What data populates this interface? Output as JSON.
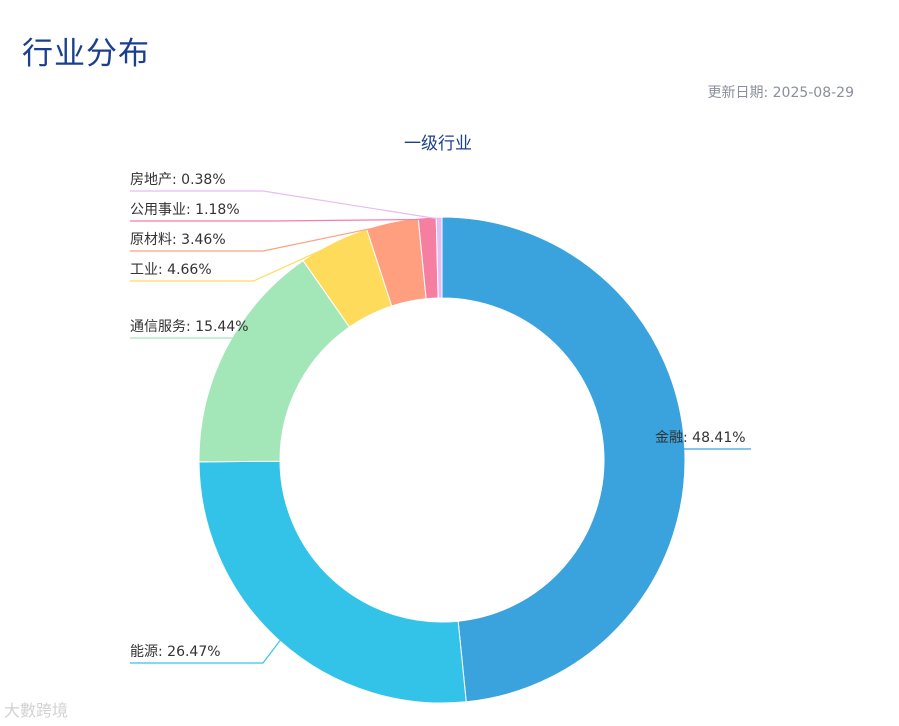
{
  "page": {
    "title": "行业分布",
    "update_label": "更新日期:",
    "update_date": "2025-08-29",
    "watermark": "大數跨境"
  },
  "chart_data": {
    "type": "pie",
    "donut": true,
    "title": "一级行业",
    "categories": [
      "金融",
      "能源",
      "通信服务",
      "工业",
      "原材料",
      "公用事业",
      "房地产"
    ],
    "values": [
      48.41,
      26.47,
      15.44,
      4.66,
      3.46,
      1.18,
      0.38
    ],
    "value_suffix": "%",
    "colors": [
      "#3aa2dc",
      "#34c3e8",
      "#a3e6b8",
      "#ffdb5c",
      "#ff9f7f",
      "#f67ea0",
      "#e7bcf3"
    ]
  }
}
